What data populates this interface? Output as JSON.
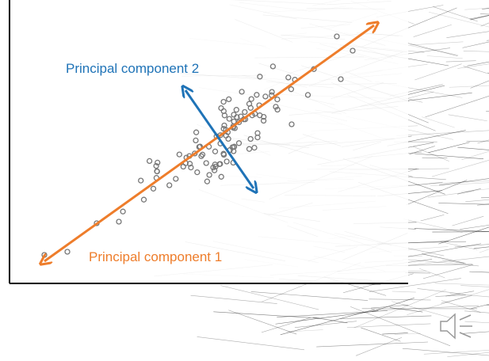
{
  "diagram": {
    "labels": {
      "pc2": "Principal component 2",
      "pc1": "Principal component 1"
    }
  }
}
